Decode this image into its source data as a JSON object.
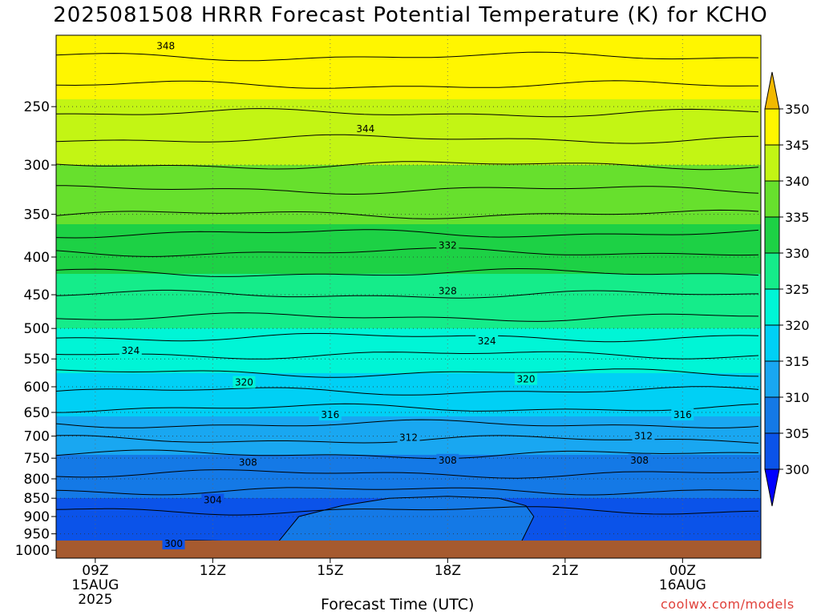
{
  "title": "2025081508 HRRR Forecast Potential Temperature (K) for KCHO",
  "xlabel": "Forecast Time (UTC)",
  "credit": "coolwx.com/models",
  "chart_data": {
    "type": "heatmap",
    "title": "2025081508 HRRR Forecast Potential Temperature (K) for KCHO",
    "xlabel": "Forecast Time (UTC)",
    "ylabel": "",
    "x_ticks": [
      {
        "hour": 9,
        "label": [
          "09Z",
          "15AUG",
          "2025"
        ]
      },
      {
        "hour": 12,
        "label": [
          "12Z"
        ]
      },
      {
        "hour": 15,
        "label": [
          "15Z"
        ]
      },
      {
        "hour": 18,
        "label": [
          "18Z"
        ]
      },
      {
        "hour": 21,
        "label": [
          "21Z"
        ]
      },
      {
        "hour": 24,
        "label": [
          "00Z",
          "16AUG"
        ]
      }
    ],
    "xlim": [
      8,
      26
    ],
    "y_scale": "log",
    "y_ticks": [
      1000,
      950,
      900,
      850,
      800,
      750,
      700,
      650,
      600,
      550,
      500,
      450,
      400,
      350,
      300,
      250
    ],
    "ylim": [
      1025,
      200
    ],
    "colorbar": {
      "levels": [
        300,
        305,
        310,
        315,
        320,
        325,
        330,
        335,
        340,
        345,
        350
      ],
      "colors": [
        "#0000ff",
        "#0b53e9",
        "#1479e6",
        "#19a7f1",
        "#00d0f5",
        "#00f5d6",
        "#15ec8a",
        "#1dd145",
        "#67e02d",
        "#c3f514",
        "#fff600",
        "#f2b900"
      ],
      "extend": "both"
    },
    "theta_profile_hr9": [
      {
        "p": 1000,
        "theta": 301.5
      },
      {
        "p": 950,
        "theta": 302.5
      },
      {
        "p": 900,
        "theta": 303.5
      },
      {
        "p": 850,
        "theta": 305
      },
      {
        "p": 800,
        "theta": 307.5
      },
      {
        "p": 750,
        "theta": 309.5
      },
      {
        "p": 700,
        "theta": 312.5
      },
      {
        "p": 650,
        "theta": 315.5
      },
      {
        "p": 600,
        "theta": 318.5
      },
      {
        "p": 550,
        "theta": 321.5
      },
      {
        "p": 500,
        "theta": 325
      },
      {
        "p": 450,
        "theta": 328
      },
      {
        "p": 400,
        "theta": 331.5
      },
      {
        "p": 350,
        "theta": 336
      },
      {
        "p": 300,
        "theta": 340
      },
      {
        "p": 250,
        "theta": 344.5
      },
      {
        "p": 200,
        "theta": 349.5
      }
    ],
    "contour_labels": [
      {
        "value": "348",
        "hour": 10.8,
        "p": 207
      },
      {
        "value": "344",
        "hour": 15.9,
        "p": 268
      },
      {
        "value": "332",
        "hour": 18.0,
        "p": 386
      },
      {
        "value": "328",
        "hour": 18.0,
        "p": 445
      },
      {
        "value": "324",
        "hour": 9.9,
        "p": 536
      },
      {
        "value": "324",
        "hour": 19.0,
        "p": 520
      },
      {
        "value": "320",
        "hour": 12.8,
        "p": 592
      },
      {
        "value": "320",
        "hour": 20.0,
        "p": 586
      },
      {
        "value": "316",
        "hour": 15.0,
        "p": 655
      },
      {
        "value": "316",
        "hour": 24.0,
        "p": 655
      },
      {
        "value": "312",
        "hour": 17.0,
        "p": 703
      },
      {
        "value": "312",
        "hour": 23.0,
        "p": 700
      },
      {
        "value": "308",
        "hour": 12.9,
        "p": 760
      },
      {
        "value": "308",
        "hour": 18.0,
        "p": 755
      },
      {
        "value": "308",
        "hour": 22.9,
        "p": 755
      },
      {
        "value": "304",
        "hour": 12.0,
        "p": 855
      },
      {
        "value": "300",
        "hour": 11.0,
        "p": 980
      }
    ]
  }
}
